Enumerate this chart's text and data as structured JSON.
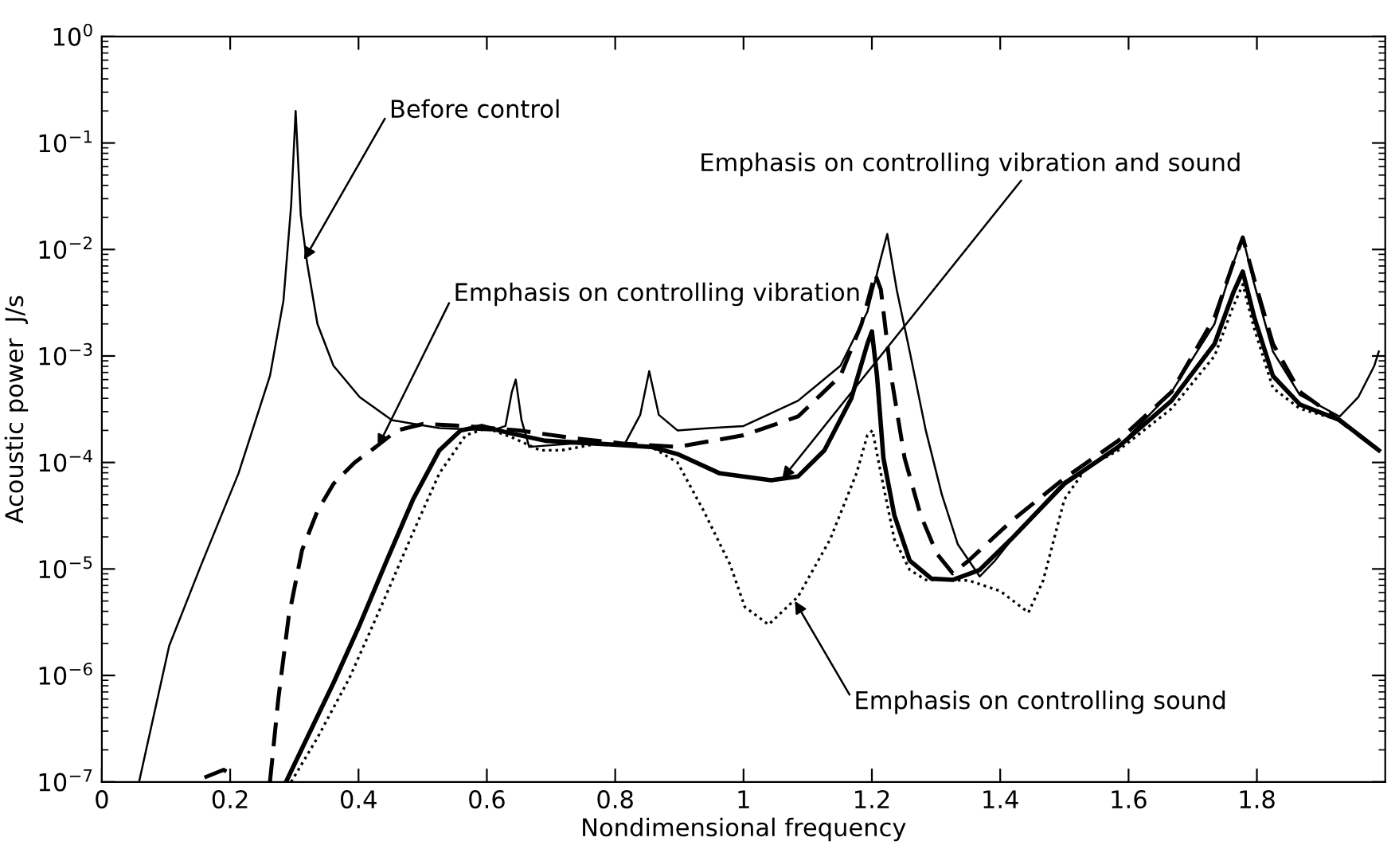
{
  "chart_data": {
    "type": "line",
    "xlabel": "Nondimensional frequency",
    "ylabel": "Acoustic power  J/s",
    "log": "y",
    "grid": false,
    "legend": false,
    "xlim": [
      0,
      2
    ],
    "xticks": [
      0,
      0.2,
      0.4,
      0.6,
      0.8,
      1,
      1.2,
      1.4,
      1.6,
      1.8
    ],
    "ylim": [
      1e-07,
      1
    ],
    "yticks": [
      {
        "value": 1e-07,
        "label": "10$^{−7}$"
      },
      {
        "value": 1e-06,
        "label": "10$^{−6}$"
      },
      {
        "value": 1e-05,
        "label": "10$^{−5}$"
      },
      {
        "value": 0.0001,
        "label": "10$^{−4}$"
      },
      {
        "value": 0.001,
        "label": "10$^{−3}$"
      },
      {
        "value": 0.01,
        "label": "10$^{−2}$"
      },
      {
        "value": 0.1,
        "label": "10$^{−1}$"
      },
      {
        "value": 1,
        "label": "10$^{0}$"
      }
    ],
    "series": [
      {
        "color": "#000000",
        "line_style": "solid",
        "x": [
          0.058,
          0.105,
          0.155,
          0.213,
          0.262,
          0.283,
          0.295,
          0.302,
          0.31,
          0.32,
          0.336,
          0.361,
          0.402,
          0.452,
          0.526,
          0.608,
          0.629,
          0.639,
          0.645,
          0.654,
          0.666,
          0.732,
          0.815,
          0.839,
          0.853,
          0.868,
          0.897,
          0.947,
          1.0,
          1.085,
          1.151,
          1.193,
          1.214,
          1.224,
          1.239,
          1.259,
          1.284,
          1.309,
          1.334,
          1.368,
          1.392,
          1.434,
          1.5,
          1.584,
          1.667,
          1.734,
          1.763,
          1.778,
          1.796,
          1.825,
          1.867,
          1.929,
          1.958,
          1.983,
          1.99
        ],
        "values": [
          1e-07,
          1.9e-06,
          1.1e-05,
          7.9e-05,
          0.00065,
          0.0033,
          0.026,
          0.2,
          0.021,
          0.0074,
          0.002,
          0.00081,
          0.00041,
          0.00025,
          0.00021,
          0.0002,
          0.00022,
          0.00046,
          0.0006,
          0.00025,
          0.00014,
          0.00015,
          0.00015,
          0.00028,
          0.00072,
          0.00028,
          0.0002,
          0.00021,
          0.00022,
          0.00038,
          0.00081,
          0.0026,
          0.0083,
          0.014,
          0.0041,
          0.0011,
          0.0002,
          5e-05,
          1.7e-05,
          8.5e-06,
          1.2e-05,
          2.5e-05,
          6.6e-05,
          0.00014,
          0.00046,
          0.002,
          0.0074,
          0.013,
          0.0047,
          0.0011,
          0.00043,
          0.00027,
          0.00041,
          0.00081,
          0.0011
        ]
      },
      {
        "color": "#000000",
        "line_style": "dashed",
        "x": [
          0.16,
          0.19,
          0.21,
          0.235,
          0.262,
          0.275,
          0.291,
          0.312,
          0.336,
          0.361,
          0.394,
          0.427,
          0.46,
          0.501,
          0.567,
          0.65,
          0.732,
          0.815,
          0.897,
          1.0,
          1.085,
          1.151,
          1.184,
          1.205,
          1.214,
          1.23,
          1.251,
          1.276,
          1.301,
          1.326,
          1.351,
          1.417,
          1.5,
          1.584,
          1.667,
          1.734,
          1.763,
          1.778,
          1.796,
          1.825,
          1.867,
          1.917,
          1.99
        ],
        "values": [
          1.1e-07,
          1.3e-07,
          1.1e-07,
          null,
          1e-07,
          6e-07,
          3.5e-06,
          1.5e-05,
          3.5e-05,
          6.3e-05,
          0.0001,
          0.00014,
          0.0002,
          0.00023,
          0.00022,
          0.0002,
          0.00017,
          0.00015,
          0.00014,
          0.00018,
          0.00027,
          0.00065,
          0.002,
          0.0059,
          0.0042,
          0.00065,
          0.00011,
          3.2e-05,
          1.4e-05,
          9.1e-06,
          1.2e-05,
          2.8e-05,
          7.1e-05,
          0.00016,
          0.00046,
          0.0023,
          0.0074,
          0.013,
          0.0052,
          0.0013,
          0.00046,
          0.00028,
          0.00013
        ]
      },
      {
        "color": "#000000",
        "line_style": "solid",
        "x": [
          0.287,
          0.32,
          0.361,
          0.402,
          0.444,
          0.485,
          0.526,
          0.559,
          0.592,
          0.633,
          0.691,
          0.773,
          0.856,
          0.897,
          0.963,
          1.043,
          1.085,
          1.126,
          1.168,
          1.193,
          1.2,
          1.208,
          1.218,
          1.235,
          1.259,
          1.293,
          1.326,
          1.368,
          1.417,
          1.5,
          1.584,
          1.667,
          1.734,
          1.763,
          1.778,
          1.796,
          1.825,
          1.867,
          1.929,
          1.99
        ],
        "values": [
          1e-07,
          2.6e-07,
          8.5e-07,
          3e-06,
          1.2e-05,
          4.5e-05,
          0.00013,
          0.0002,
          0.00022,
          0.00019,
          0.00016,
          0.00015,
          0.00014,
          0.00012,
          7.9e-05,
          6.8e-05,
          7.4e-05,
          0.00013,
          0.0004,
          0.0013,
          0.0017,
          0.00065,
          0.00011,
          3.2e-05,
          1.2e-05,
          8.1e-06,
          7.9e-06,
          9.8e-06,
          1.9e-05,
          6.3e-05,
          0.00014,
          0.00038,
          0.0013,
          0.0039,
          0.0062,
          0.0023,
          0.00065,
          0.00035,
          0.00025,
          0.00013
        ]
      },
      {
        "color": "#000000",
        "line_style": "dotted",
        "x": [
          0.295,
          0.336,
          0.386,
          0.435,
          0.485,
          0.526,
          0.567,
          0.6,
          0.641,
          0.683,
          0.716,
          0.773,
          0.856,
          0.897,
          0.938,
          0.979,
          1.002,
          1.039,
          1.085,
          1.135,
          1.176,
          1.193,
          1.201,
          1.214,
          1.235,
          1.259,
          1.284,
          1.351,
          1.4,
          1.444,
          1.467,
          1.5,
          1.534,
          1.584,
          1.667,
          1.734,
          1.763,
          1.778,
          1.796,
          1.825,
          1.867,
          1.929,
          1.99
        ],
        "values": [
          1e-07,
          2.6e-07,
          9.5e-07,
          4.4e-06,
          2.2e-05,
          7.9e-05,
          0.00018,
          0.00021,
          0.00017,
          0.00013,
          0.00013,
          0.00015,
          0.00014,
          0.0001,
          3.5e-05,
          1.1e-05,
          4.4e-06,
          3e-06,
          5.5e-06,
          1.9e-05,
          7.9e-05,
          0.00018,
          0.0002,
          7.9e-05,
          1.9e-05,
          9.8e-06,
          7.9e-06,
          7.8e-06,
          6.2e-06,
          3.9e-06,
          7.8e-06,
          4.5e-05,
          8.9e-05,
          0.00013,
          0.00032,
          0.001,
          0.0029,
          0.0047,
          0.0018,
          0.0005,
          0.00032,
          0.00025,
          0.00013
        ]
      }
    ],
    "annotations": [
      {
        "text": "Before control",
        "x": 0.315,
        "y": 0.008
      },
      {
        "text": "Emphasis on controlling vibration",
        "x": 0.43,
        "y": 0.00014
      },
      {
        "text": "Emphasis on controlling vibration and sound",
        "x": 1.06,
        "y": 7e-05
      },
      {
        "text": "Emphasis on controlling sound",
        "x": 1.08,
        "y": 5e-06
      }
    ]
  }
}
